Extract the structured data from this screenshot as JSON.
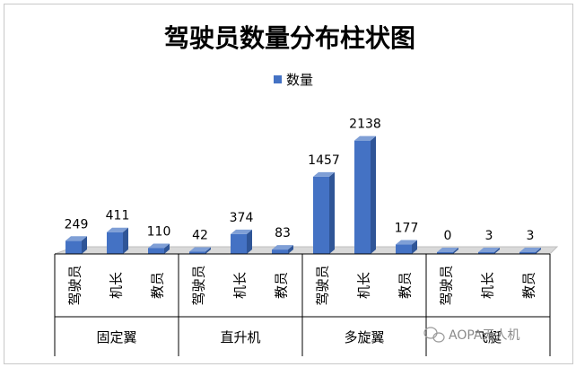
{
  "chart_data": {
    "type": "bar",
    "title": "驾驶员数量分布柱状图",
    "legend": {
      "position": "top",
      "entries": [
        "数量"
      ]
    },
    "series": [
      {
        "name": "数量",
        "color": "#4472C4",
        "values": [
          249,
          411,
          110,
          42,
          374,
          83,
          1457,
          2138,
          177,
          0,
          3,
          3
        ]
      }
    ],
    "categories": [
      "驾驶员",
      "机长",
      "教员",
      "驾驶员",
      "机长",
      "教员",
      "驾驶员",
      "机长",
      "教员",
      "驾驶员",
      "机长",
      "教员"
    ],
    "groups": [
      {
        "label": "固定翼",
        "size": 3
      },
      {
        "label": "直升机",
        "size": 3
      },
      {
        "label": "多旋翼",
        "size": 3
      },
      {
        "label": "飞艇",
        "size": 3
      }
    ],
    "ylim": [
      0,
      2200
    ],
    "grid": false,
    "xlabel": "",
    "ylabel": ""
  },
  "watermark": {
    "text": "AOPA无人机",
    "icon": "wechat-icon"
  }
}
